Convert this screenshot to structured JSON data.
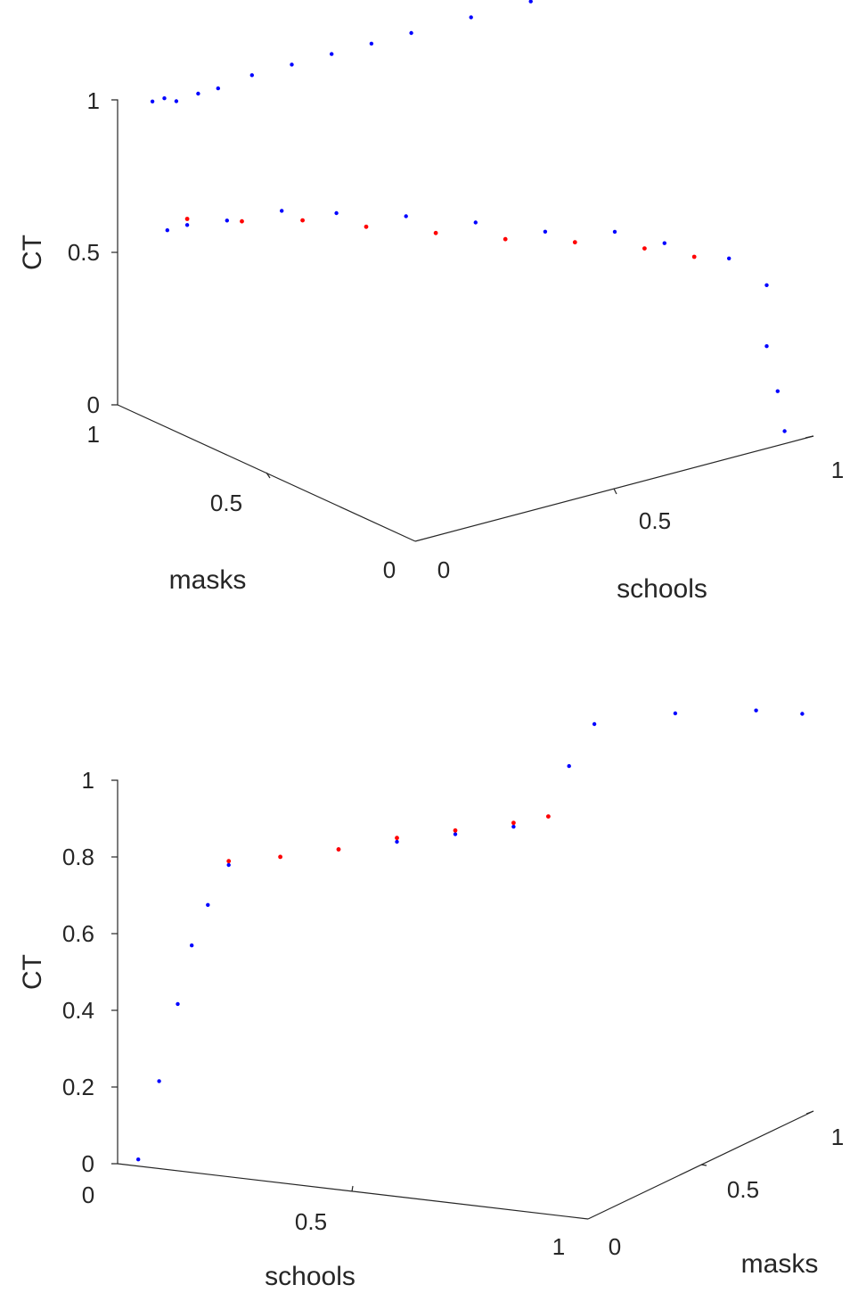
{
  "chart_data": [
    {
      "type": "scatter",
      "view": "3d",
      "title": "",
      "xlabel": "schools",
      "ylabel": "masks",
      "zlabel": "CT",
      "x_ticks": [
        "0",
        "0.5",
        "1"
      ],
      "y_ticks": [
        "0",
        "0.5",
        "1"
      ],
      "z_ticks": [
        "0",
        "0.5",
        "1"
      ],
      "xlim": [
        0,
        1
      ],
      "ylim": [
        0,
        1
      ],
      "zlim": [
        0,
        1
      ],
      "grid": false,
      "series": [
        {
          "color": "#0000ff",
          "points": [
            [
              0.05,
              0.95,
              1.0
            ],
            [
              0.08,
              0.95,
              1.0
            ],
            [
              0.11,
              0.95,
              0.98
            ],
            [
              0.15,
              0.93,
              1.0
            ],
            [
              0.2,
              0.93,
              1.0
            ],
            [
              0.3,
              0.95,
              1.0
            ],
            [
              0.4,
              0.95,
              1.0
            ],
            [
              0.5,
              0.95,
              1.0
            ],
            [
              0.6,
              0.95,
              1.0
            ],
            [
              0.7,
              0.95,
              1.0
            ],
            [
              0.85,
              0.95,
              1.0
            ],
            [
              1.0,
              0.95,
              1.0
            ],
            [
              0.05,
              0.9,
              0.6
            ],
            [
              0.1,
              0.9,
              0.6
            ],
            [
              0.2,
              0.9,
              0.58
            ],
            [
              0.3,
              0.85,
              0.6
            ],
            [
              0.4,
              0.8,
              0.58
            ],
            [
              0.5,
              0.7,
              0.58
            ],
            [
              0.6,
              0.6,
              0.57
            ],
            [
              0.7,
              0.5,
              0.55
            ],
            [
              0.8,
              0.4,
              0.56
            ],
            [
              0.85,
              0.3,
              0.55
            ],
            [
              0.9,
              0.15,
              0.55
            ],
            [
              0.92,
              0.05,
              0.5
            ],
            [
              0.92,
              0.05,
              0.3
            ],
            [
              0.94,
              0.04,
              0.15
            ],
            [
              0.95,
              0.03,
              0.02
            ]
          ]
        },
        {
          "color": "#ff0000",
          "points": [
            [
              0.1,
              0.9,
              0.62
            ],
            [
              0.2,
              0.85,
              0.6
            ],
            [
              0.3,
              0.78,
              0.6
            ],
            [
              0.4,
              0.7,
              0.58
            ],
            [
              0.5,
              0.6,
              0.57
            ],
            [
              0.6,
              0.5,
              0.56
            ],
            [
              0.7,
              0.4,
              0.56
            ],
            [
              0.8,
              0.3,
              0.55
            ],
            [
              0.85,
              0.2,
              0.55
            ]
          ]
        }
      ]
    },
    {
      "type": "scatter",
      "view": "3d",
      "title": "",
      "xlabel": "schools",
      "ylabel": "masks",
      "zlabel": "CT",
      "x_ticks": [
        "0",
        "0.5",
        "1"
      ],
      "y_ticks": [
        "0",
        "0.5",
        "1"
      ],
      "z_ticks": [
        "0",
        "0.2",
        "0.4",
        "0.6",
        "0.8",
        "1"
      ],
      "xlim": [
        0,
        1
      ],
      "ylim": [
        0,
        1
      ],
      "zlim": [
        0,
        1
      ],
      "grid": false,
      "series": [
        {
          "color": "#0000ff",
          "points": [
            [
              0.02,
              0.05,
              0.0
            ],
            [
              0.05,
              0.08,
              0.2
            ],
            [
              0.08,
              0.1,
              0.4
            ],
            [
              0.1,
              0.12,
              0.55
            ],
            [
              0.12,
              0.15,
              0.65
            ],
            [
              0.15,
              0.18,
              0.75
            ],
            [
              0.25,
              0.2,
              0.78
            ],
            [
              0.35,
              0.25,
              0.8
            ],
            [
              0.45,
              0.3,
              0.82
            ],
            [
              0.55,
              0.35,
              0.84
            ],
            [
              0.65,
              0.4,
              0.86
            ],
            [
              0.7,
              0.45,
              0.88
            ],
            [
              0.72,
              0.5,
              1.0
            ],
            [
              0.75,
              0.55,
              1.1
            ],
            [
              0.85,
              0.7,
              1.1
            ],
            [
              0.95,
              0.85,
              1.08
            ],
            [
              1.0,
              0.95,
              1.05
            ]
          ]
        },
        {
          "color": "#ff0000",
          "points": [
            [
              0.15,
              0.18,
              0.76
            ],
            [
              0.25,
              0.2,
              0.78
            ],
            [
              0.35,
              0.25,
              0.8
            ],
            [
              0.45,
              0.3,
              0.83
            ],
            [
              0.55,
              0.35,
              0.85
            ],
            [
              0.65,
              0.4,
              0.87
            ],
            [
              0.7,
              0.45,
              0.88
            ]
          ]
        }
      ]
    }
  ]
}
